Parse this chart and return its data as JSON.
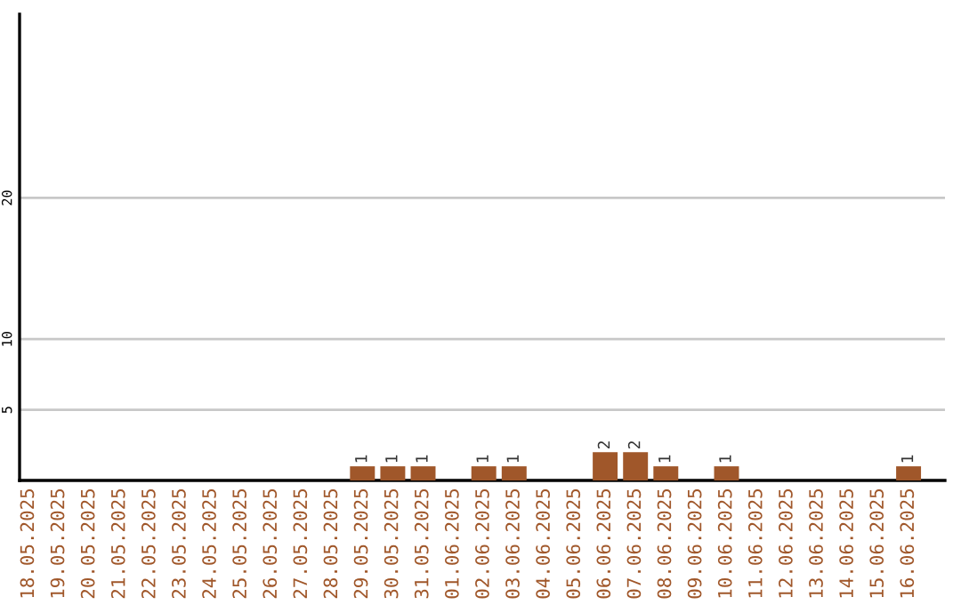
{
  "chart_data": {
    "type": "bar",
    "categories": [
      "18.05.2025",
      "19.05.2025",
      "20.05.2025",
      "21.05.2025",
      "22.05.2025",
      "23.05.2025",
      "24.05.2025",
      "25.05.2025",
      "26.05.2025",
      "27.05.2025",
      "28.05.2025",
      "29.05.2025",
      "30.05.2025",
      "31.05.2025",
      "01.06.2025",
      "02.06.2025",
      "03.06.2025",
      "04.06.2025",
      "05.06.2025",
      "06.06.2025",
      "07.06.2025",
      "08.06.2025",
      "09.06.2025",
      "10.06.2025",
      "11.06.2025",
      "12.06.2025",
      "13.06.2025",
      "14.06.2025",
      "15.06.2025",
      "16.06.2025"
    ],
    "values": [
      0,
      0,
      0,
      0,
      0,
      0,
      0,
      0,
      0,
      0,
      0,
      1,
      1,
      1,
      0,
      1,
      1,
      0,
      0,
      2,
      2,
      1,
      0,
      1,
      0,
      0,
      0,
      0,
      0,
      1
    ],
    "value_labels": [
      null,
      null,
      null,
      null,
      null,
      null,
      null,
      null,
      null,
      null,
      null,
      "1",
      "1",
      "1",
      null,
      "1",
      "1",
      null,
      null,
      "2",
      "2",
      "1",
      null,
      "1",
      null,
      null,
      null,
      null,
      null,
      "1"
    ],
    "color": "#a0572a",
    "ylim": [
      0,
      33
    ],
    "yticks": [
      5,
      10,
      20
    ],
    "grid": "y"
  }
}
